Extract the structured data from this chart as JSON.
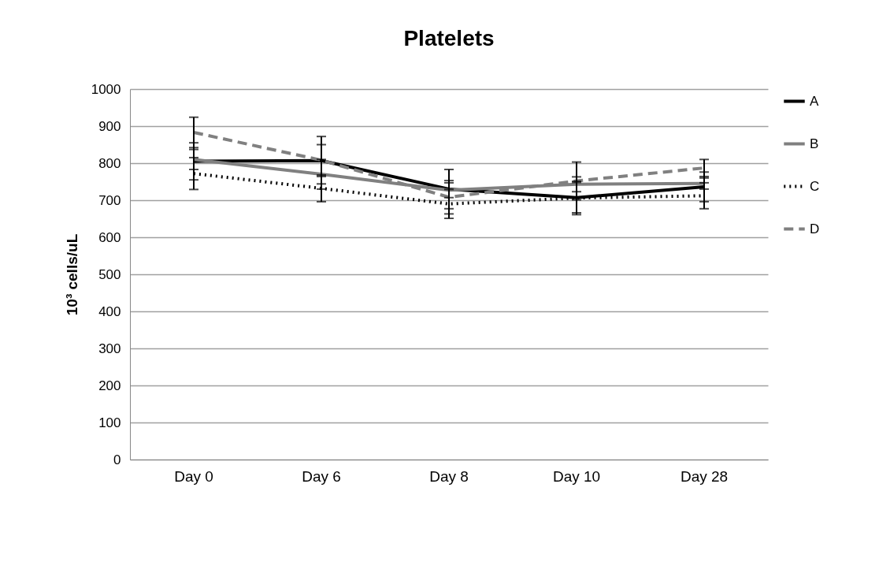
{
  "chart_data": {
    "type": "line",
    "title": "Platelets",
    "ylabel": "10³ cells/uL",
    "categories": [
      "Day 0",
      "Day 6",
      "Day 8",
      "Day 10",
      "Day 28"
    ],
    "series": [
      {
        "name": "A",
        "color": "#000000",
        "line_style": "solid",
        "values": [
          805,
          807,
          730,
          707,
          736
        ],
        "errors": [
          50,
          43,
          53,
          41,
          40
        ]
      },
      {
        "name": "B",
        "color": "#808080",
        "line_style": "solid",
        "values": [
          810,
          770,
          727,
          743,
          745
        ],
        "errors": [
          27,
          40,
          20,
          20,
          15
        ]
      },
      {
        "name": "C",
        "color": "#000000",
        "line_style": "dotted",
        "values": [
          772,
          732,
          690,
          706,
          712
        ],
        "errors": [
          43,
          36,
          39,
          45,
          35
        ]
      },
      {
        "name": "D",
        "color": "#808080",
        "line_style": "dashed",
        "values": [
          883,
          808,
          708,
          752,
          787
        ],
        "errors": [
          41,
          64,
          45,
          51,
          23
        ]
      }
    ],
    "ylim": [
      0,
      1000
    ],
    "yticks": [
      0,
      100,
      200,
      300,
      400,
      500,
      600,
      700,
      800,
      900,
      1000
    ],
    "grid": "y",
    "legend": "right",
    "marker": "none"
  }
}
